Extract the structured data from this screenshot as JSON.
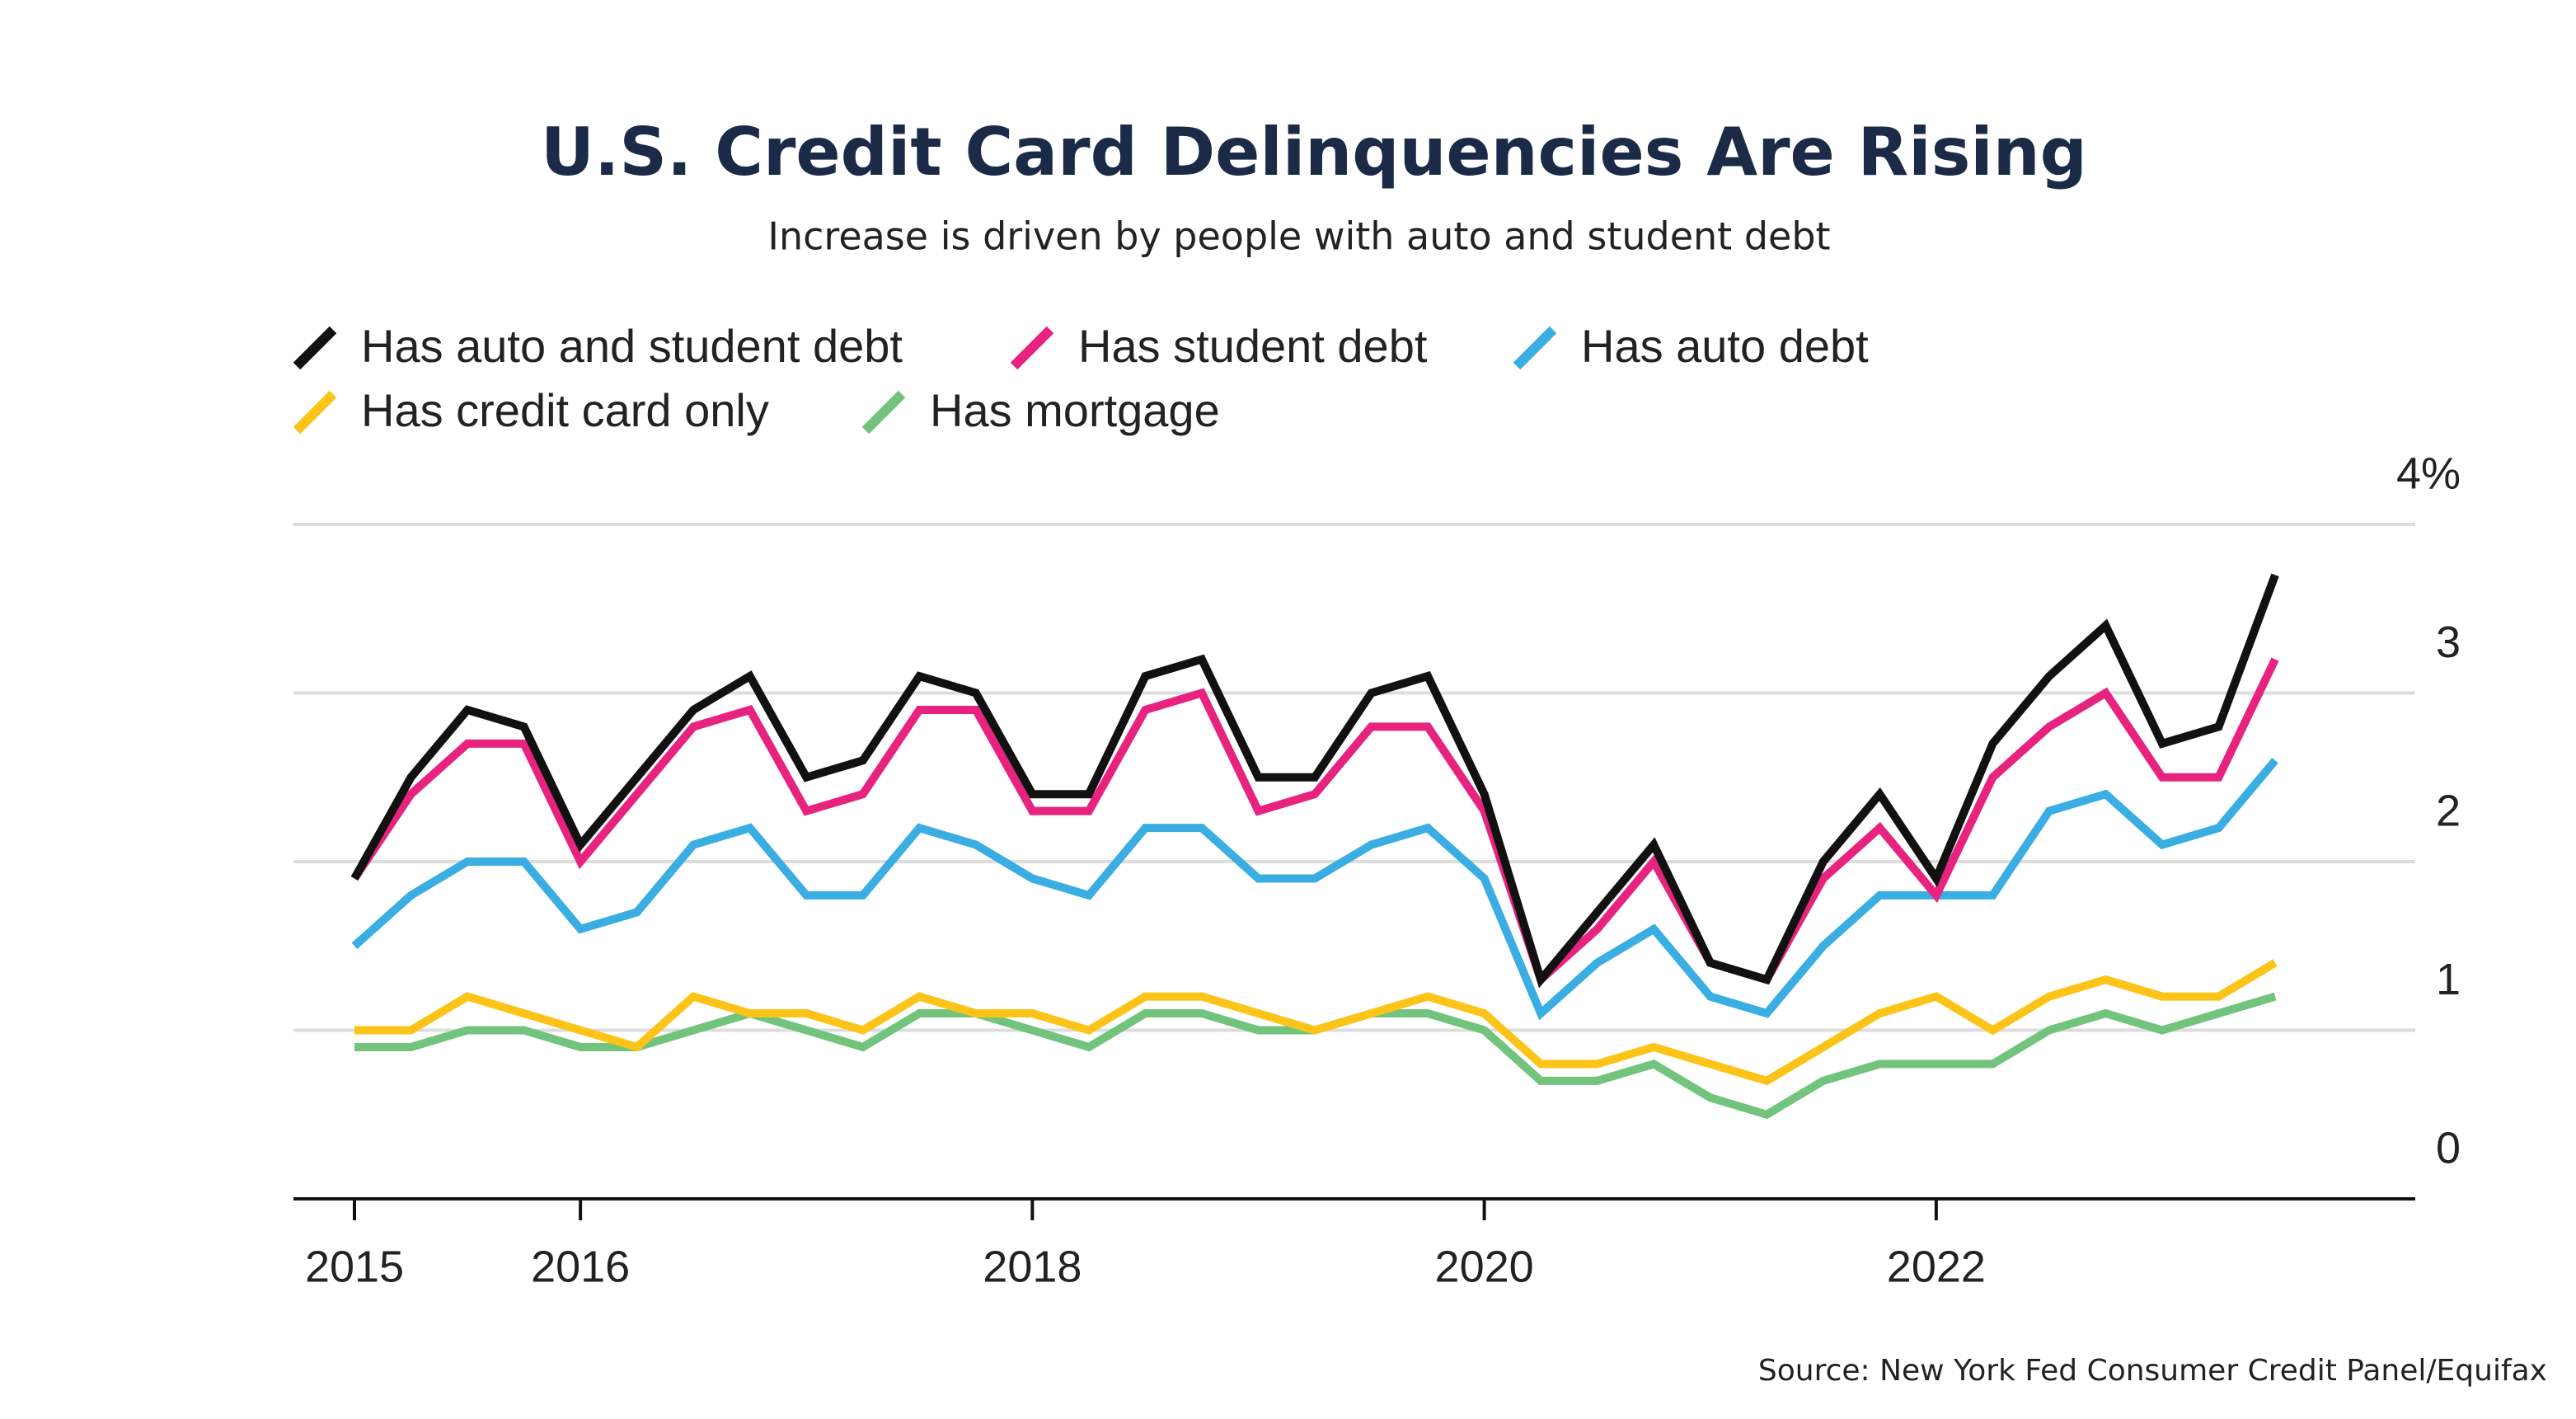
{
  "chart_data": {
    "type": "line",
    "title": "U.S. Credit Card Delinquencies Are Rising",
    "subtitle": "Increase is driven by people with auto and student debt",
    "source": "Source: New York Fed Consumer Credit Panel/Equifax",
    "x": [
      2015,
      2015.25,
      2015.5,
      2015.75,
      2016,
      2016.25,
      2016.5,
      2016.75,
      2017,
      2017.25,
      2017.5,
      2017.75,
      2018,
      2018.25,
      2018.5,
      2018.75,
      2019,
      2019.25,
      2019.5,
      2019.75,
      2020,
      2020.25,
      2020.5,
      2020.75,
      2021,
      2021.25,
      2021.5,
      2021.75,
      2022,
      2022.25,
      2022.5,
      2022.75,
      2023,
      2023.25,
      2023.5
    ],
    "series": [
      {
        "name": "Has auto and student debt",
        "color": "#111111",
        "values": [
          1.9,
          2.5,
          2.9,
          2.8,
          2.1,
          2.5,
          2.9,
          3.1,
          2.5,
          2.6,
          3.1,
          3.0,
          2.4,
          2.4,
          3.1,
          3.2,
          2.5,
          2.5,
          3.0,
          3.1,
          2.4,
          1.3,
          1.7,
          2.1,
          1.4,
          1.3,
          2.0,
          2.4,
          1.9,
          2.7,
          3.1,
          3.4,
          2.7,
          2.8,
          3.7
        ]
      },
      {
        "name": "Has student debt",
        "color": "#e8237f",
        "values": [
          1.9,
          2.4,
          2.7,
          2.7,
          2.0,
          2.4,
          2.8,
          2.9,
          2.3,
          2.4,
          2.9,
          2.9,
          2.3,
          2.3,
          2.9,
          3.0,
          2.3,
          2.4,
          2.8,
          2.8,
          2.3,
          1.3,
          1.6,
          2.0,
          1.4,
          1.3,
          1.9,
          2.2,
          1.8,
          2.5,
          2.8,
          3.0,
          2.5,
          2.5,
          3.2
        ]
      },
      {
        "name": "Has auto debt",
        "color": "#3aaee3",
        "values": [
          1.5,
          1.8,
          2.0,
          2.0,
          1.6,
          1.7,
          2.1,
          2.2,
          1.8,
          1.8,
          2.2,
          2.1,
          1.9,
          1.8,
          2.2,
          2.2,
          1.9,
          1.9,
          2.1,
          2.2,
          1.9,
          1.1,
          1.4,
          1.6,
          1.2,
          1.1,
          1.5,
          1.8,
          1.8,
          1.8,
          2.3,
          2.4,
          2.1,
          2.2,
          2.6
        ]
      },
      {
        "name": "Has credit card only",
        "color": "#fcc419",
        "values": [
          1.0,
          1.0,
          1.2,
          1.1,
          1.0,
          0.9,
          1.2,
          1.1,
          1.1,
          1.0,
          1.2,
          1.1,
          1.1,
          1.0,
          1.2,
          1.2,
          1.1,
          1.0,
          1.1,
          1.2,
          1.1,
          0.8,
          0.8,
          0.9,
          0.8,
          0.7,
          0.9,
          1.1,
          1.2,
          1.0,
          1.2,
          1.3,
          1.2,
          1.2,
          1.4
        ]
      },
      {
        "name": "Has mortgage",
        "color": "#72c47c",
        "values": [
          0.9,
          0.9,
          1.0,
          1.0,
          0.9,
          0.9,
          1.0,
          1.1,
          1.0,
          0.9,
          1.1,
          1.1,
          1.0,
          0.9,
          1.1,
          1.1,
          1.0,
          1.0,
          1.1,
          1.1,
          1.0,
          0.7,
          0.7,
          0.8,
          0.6,
          0.5,
          0.7,
          0.8,
          0.8,
          0.8,
          1.0,
          1.1,
          1.0,
          1.1,
          1.2
        ]
      }
    ],
    "xlim": [
      2014.73,
      2024.12
    ],
    "xticks": [
      2015,
      2016,
      2018,
      2020,
      2022
    ],
    "ylim": [
      0,
      4
    ],
    "yticks": [
      0,
      1,
      2,
      3,
      {
        "value": 4,
        "label": "4%"
      }
    ],
    "grid": true
  }
}
